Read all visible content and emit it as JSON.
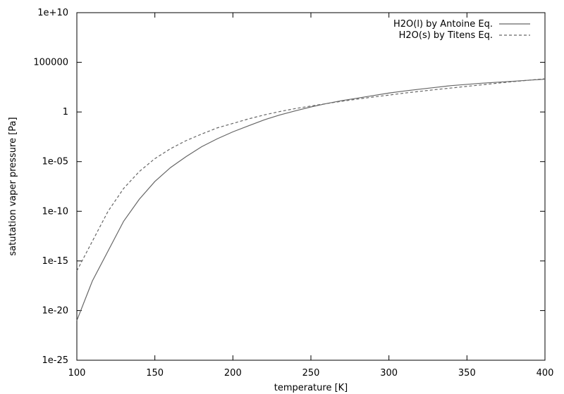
{
  "chart_data": {
    "type": "line",
    "title": "",
    "xlabel": "temperature [K]",
    "ylabel": "satutation vaper pressure [Pa]",
    "xlim": [
      100,
      400
    ],
    "ylim": [
      1e-25,
      10000000000.0
    ],
    "yscale": "log",
    "grid": false,
    "legend_position": "top-right",
    "x_ticks": [
      {
        "value": 100,
        "label": "100"
      },
      {
        "value": 150,
        "label": "150"
      },
      {
        "value": 200,
        "label": "200"
      },
      {
        "value": 250,
        "label": "250"
      },
      {
        "value": 300,
        "label": "300"
      },
      {
        "value": 350,
        "label": "350"
      },
      {
        "value": 400,
        "label": "400"
      }
    ],
    "y_ticks": [
      {
        "value": 1e-25,
        "label": "1e-25"
      },
      {
        "value": 1e-20,
        "label": "1e-20"
      },
      {
        "value": 1e-15,
        "label": "1e-15"
      },
      {
        "value": 1e-10,
        "label": "1e-10"
      },
      {
        "value": 1e-05,
        "label": "1e-05"
      },
      {
        "value": 1,
        "label": "1"
      },
      {
        "value": 100000,
        "label": "100000"
      },
      {
        "value": 10000000000.0,
        "label": "1e+10"
      }
    ],
    "series": [
      {
        "name": "H2O(l) by Antoine Eq.",
        "color": "#666666",
        "dash": "solid",
        "x": [
          100,
          110,
          120,
          130,
          140,
          150,
          160,
          170,
          180,
          190,
          200,
          210,
          220,
          230,
          240,
          250,
          260,
          270,
          280,
          290,
          300,
          310,
          320,
          330,
          340,
          350,
          360,
          370,
          380,
          390,
          400
        ],
        "y": [
          1e-21,
          1e-17,
          1e-14,
          1e-11,
          1.6e-09,
          1e-07,
          2.5e-06,
          3.2e-05,
          0.00032,
          0.002,
          0.01,
          0.04,
          0.16,
          0.5,
          1.3,
          3.2,
          7,
          14,
          25,
          45,
          80,
          130,
          200,
          300,
          450,
          600,
          800,
          1000,
          1250,
          1600,
          2000
        ]
      },
      {
        "name": "H2O(s) by Titens Eq.",
        "color": "#666666",
        "dash": "dashed",
        "x": [
          100,
          110,
          120,
          130,
          140,
          150,
          160,
          170,
          180,
          190,
          200,
          210,
          220,
          230,
          240,
          250,
          260,
          270,
          280,
          290,
          300,
          310,
          320,
          330,
          340,
          350,
          360,
          370,
          380,
          390,
          400
        ],
        "y": [
          1e-16,
          1e-13,
          1e-10,
          2e-08,
          1e-06,
          2e-05,
          0.0002,
          0.0013,
          0.006,
          0.025,
          0.07,
          0.2,
          0.5,
          1.1,
          2.2,
          4,
          7,
          12,
          20,
          32,
          50,
          80,
          120,
          180,
          260,
          380,
          550,
          800,
          1150,
          1600,
          2200
        ]
      }
    ]
  }
}
